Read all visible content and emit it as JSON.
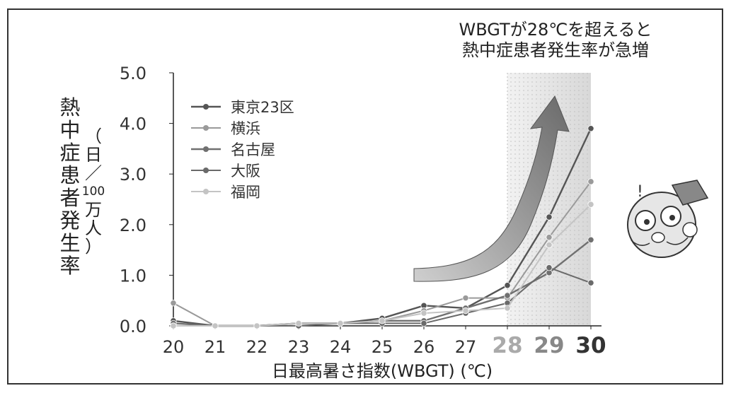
{
  "chart_data": {
    "type": "line",
    "annotation": [
      "WBGTが28℃を超えると",
      "熱中症患者発生率が急増"
    ],
    "ylabel": "熱中症患者発生率",
    "ylabel_unit": [
      "（",
      "日",
      "／",
      "100",
      "万",
      "人",
      "）"
    ],
    "xlabel": "日最高暑さ指数(WBGT) (℃)",
    "x": [
      20,
      21,
      22,
      23,
      24,
      25,
      26,
      27,
      28,
      29,
      30
    ],
    "x_tick_labels": [
      "20",
      "21",
      "22",
      "23",
      "24",
      "25",
      "26",
      "27",
      "28",
      "29",
      "30"
    ],
    "y_tick_labels": [
      "0.0",
      "1.0",
      "2.0",
      "3.0",
      "4.0",
      "5.0"
    ],
    "ylim": [
      0,
      5
    ],
    "xlim": [
      20,
      30
    ],
    "legend_position": "top-left",
    "grid": false,
    "series": [
      {
        "name": "東京23区",
        "color": "#555555",
        "width": 2.4,
        "values": [
          0.1,
          0.0,
          0.0,
          0.05,
          0.05,
          0.15,
          0.4,
          0.35,
          0.8,
          2.15,
          3.9
        ]
      },
      {
        "name": "横浜",
        "color": "#9a9a9a",
        "width": 2.0,
        "values": [
          0.45,
          0.0,
          0.0,
          0.05,
          0.05,
          0.1,
          0.3,
          0.55,
          0.55,
          1.75,
          2.85
        ]
      },
      {
        "name": "名古屋",
        "color": "#707070",
        "width": 2.4,
        "values": [
          0.05,
          0.0,
          0.0,
          0.05,
          0.05,
          0.1,
          0.1,
          0.35,
          0.6,
          1.05,
          1.7
        ]
      },
      {
        "name": "大阪",
        "color": "#6a6a6a",
        "width": 2.0,
        "values": [
          0.0,
          0.0,
          0.0,
          0.0,
          0.05,
          0.05,
          0.05,
          0.25,
          0.45,
          1.15,
          0.85
        ]
      },
      {
        "name": "福岡",
        "color": "#c4c4c4",
        "width": 2.0,
        "values": [
          0.0,
          0.0,
          0.0,
          0.05,
          0.05,
          0.1,
          0.25,
          0.3,
          0.35,
          1.6,
          2.4
        ]
      }
    ],
    "highlight_band": {
      "from": 28,
      "to": 30
    },
    "emphasis_tick_colors": {
      "28": "#aaaaaa",
      "29": "#888888",
      "30": "#333333"
    }
  }
}
